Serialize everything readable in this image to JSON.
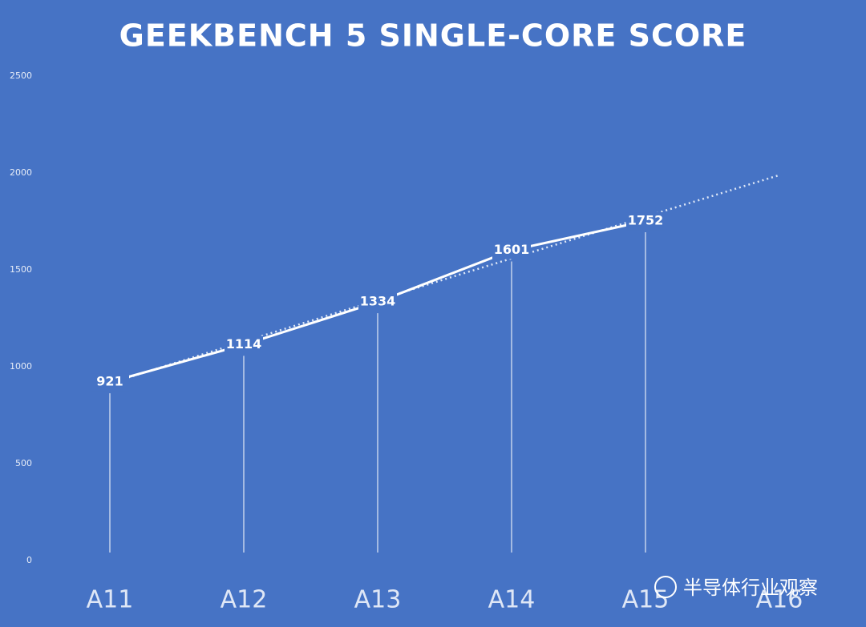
{
  "chart_data": {
    "type": "line",
    "title": "GEEKBENCH 5 SINGLE-CORE SCORE",
    "categories": [
      "A11",
      "A12",
      "A13",
      "A14",
      "A15",
      "A16"
    ],
    "series": [
      {
        "color": "#ffffff",
        "values": [
          921,
          1114,
          1334,
          1601,
          1752,
          null
        ]
      }
    ],
    "trendline": {
      "color": "#dfe8f7",
      "values": [
        915,
        1130,
        1344,
        1559,
        1774,
        1989
      ]
    },
    "ylim": [
      0,
      2500
    ],
    "yticks": [
      0,
      500,
      1000,
      1500,
      2000,
      2500
    ],
    "data_labels": true,
    "drop_lines": true,
    "grid": false
  },
  "watermark": "半导体行业观察"
}
